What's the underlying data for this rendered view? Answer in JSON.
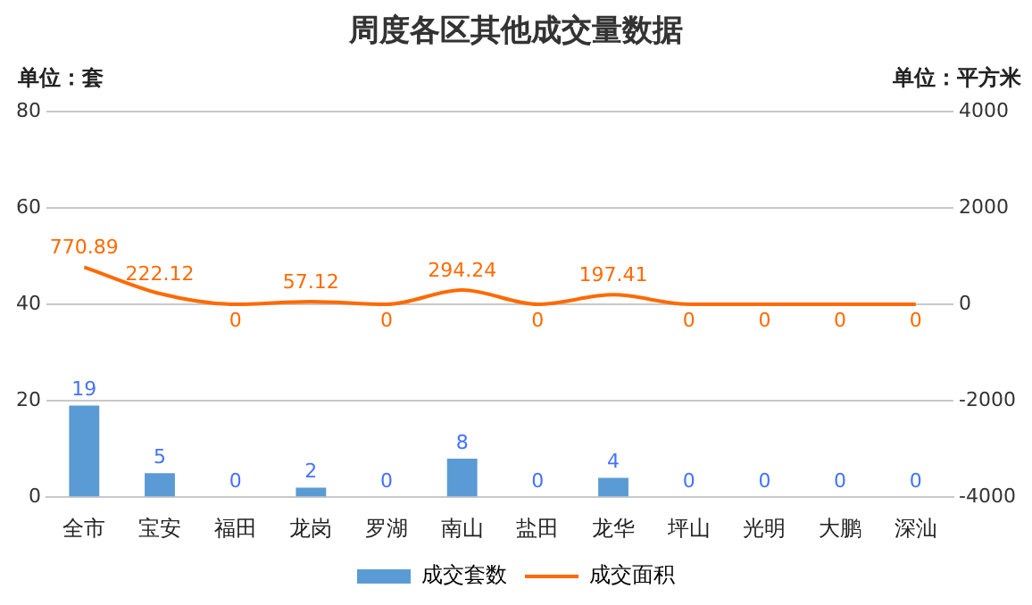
{
  "chart_data": {
    "type": "bar",
    "title": "周度各区其他成交量数据",
    "ylabel": "单位：套",
    "y2label": "单位：平方米",
    "categories": [
      "全市",
      "宝安",
      "福田",
      "龙岗",
      "罗湖",
      "南山",
      "盐田",
      "龙华",
      "坪山",
      "光明",
      "大鹏",
      "深汕"
    ],
    "series": [
      {
        "name": "成交套数",
        "color": "#5b9bd5",
        "values": [
          19,
          5,
          0,
          2,
          0,
          8,
          0,
          4,
          0,
          0,
          0,
          0
        ]
      },
      {
        "name": "成交面积",
        "type": "line",
        "axis": "y2",
        "color": "#ff6a00",
        "values": [
          770.89,
          222.12,
          0,
          57.12,
          0,
          294.24,
          0,
          197.41,
          0,
          0,
          0,
          0
        ]
      }
    ],
    "ylim": [
      0,
      80
    ],
    "yticks": [
      0,
      20,
      40,
      60,
      80
    ],
    "y2lim": [
      -4000,
      4000
    ],
    "y2ticks": [
      -4000,
      -2000,
      0,
      2000,
      4000
    ],
    "grid": "y",
    "legend": "bottom",
    "data_labels": true,
    "marker": "none"
  }
}
